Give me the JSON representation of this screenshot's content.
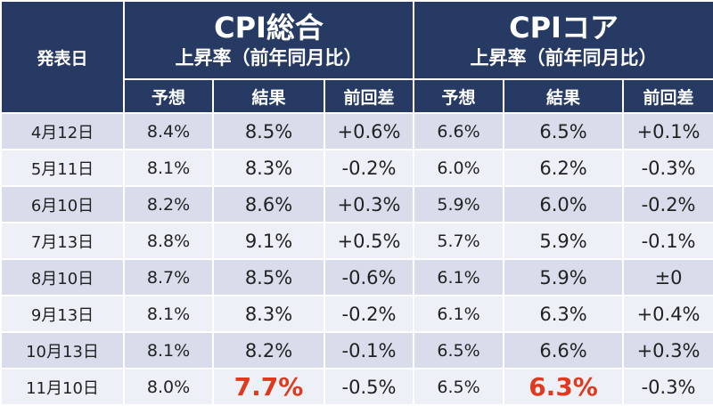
{
  "header": {
    "date_label": "発表日",
    "headline": {
      "title": "CPI総合",
      "subtitle": "上昇率（前年同月比）"
    },
    "core": {
      "title": "CPIコア",
      "subtitle": "上昇率（前年同月比）"
    },
    "columns": [
      "予想",
      "結果",
      "前回差",
      "予想",
      "結果",
      "前回差"
    ]
  },
  "rows": [
    {
      "date": "4月12日",
      "cpi_forecast": "8.4%",
      "cpi_result": "8.5%",
      "cpi_diff": "+0.6%",
      "core_forecast": "6.6%",
      "core_result": "6.5%",
      "core_diff": "+0.1%"
    },
    {
      "date": "5月11日",
      "cpi_forecast": "8.1%",
      "cpi_result": "8.3%",
      "cpi_diff": "-0.2%",
      "core_forecast": "6.0%",
      "core_result": "6.2%",
      "core_diff": "-0.3%"
    },
    {
      "date": "6月10日",
      "cpi_forecast": "8.2%",
      "cpi_result": "8.6%",
      "cpi_diff": "+0.3%",
      "core_forecast": "5.9%",
      "core_result": "6.0%",
      "core_diff": "-0.2%"
    },
    {
      "date": "7月13日",
      "cpi_forecast": "8.8%",
      "cpi_result": "9.1%",
      "cpi_diff": "+0.5%",
      "core_forecast": "5.7%",
      "core_result": "5.9%",
      "core_diff": "-0.1%"
    },
    {
      "date": "8月10日",
      "cpi_forecast": "8.7%",
      "cpi_result": "8.5%",
      "cpi_diff": "-0.6%",
      "core_forecast": "6.1%",
      "core_result": "5.9%",
      "core_diff": "±0"
    },
    {
      "date": "9月13日",
      "cpi_forecast": "8.1%",
      "cpi_result": "8.3%",
      "cpi_diff": "-0.2%",
      "core_forecast": "6.1%",
      "core_result": "6.3%",
      "core_diff": "+0.4%"
    },
    {
      "date": "10月13日",
      "cpi_forecast": "8.1%",
      "cpi_result": "8.2%",
      "cpi_diff": "-0.1%",
      "core_forecast": "6.5%",
      "core_result": "6.6%",
      "core_diff": "+0.3%"
    },
    {
      "date": "11月10日",
      "cpi_forecast": "8.0%",
      "cpi_result": "7.7%",
      "cpi_diff": "-0.5%",
      "core_forecast": "6.5%",
      "core_result": "6.3%",
      "core_diff": "-0.3%"
    }
  ],
  "highlight_color": "#e03a1e"
}
